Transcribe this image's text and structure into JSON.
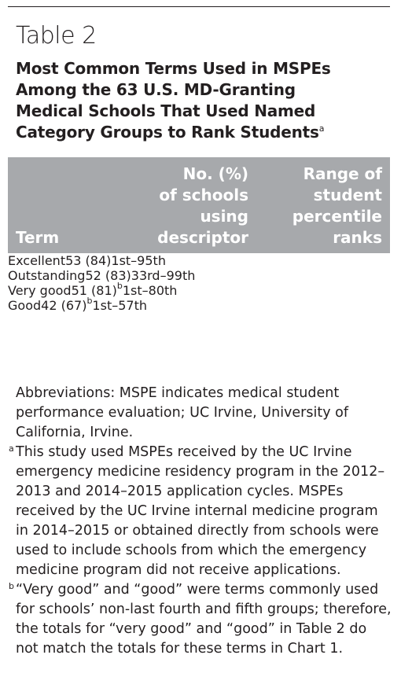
{
  "header": {
    "title": "Table 2",
    "subtitle_lines": [
      "Most Common Terms Used in MSPEs",
      "Among the 63 U.S. MD-Granting",
      "Medical Schools That Used Named",
      "Category Groups to Rank Students"
    ],
    "subtitle_note": "a"
  },
  "table": {
    "columns": [
      [
        "Term"
      ],
      [
        "No. (%)",
        "of schools",
        "using",
        "descriptor"
      ],
      [
        "Range of",
        "student",
        "percentile",
        "ranks"
      ]
    ],
    "rows": [
      [
        "Excellent",
        "53 (84)",
        "1st–95th"
      ],
      [
        "Outstanding",
        "52 (83)",
        "33rd–99th"
      ],
      [
        "Very good",
        {
          "text": "51 (81)",
          "note": "b"
        },
        "1st–80th"
      ],
      [
        "Good",
        {
          "text": "42 (67)",
          "note": "b"
        },
        "1st–57th"
      ]
    ]
  },
  "footnotes": [
    {
      "text": "Abbreviations: MSPE indicates medical student performance evaluation; UC Irvine, University of California, Irvine."
    },
    {
      "marker": "a",
      "text": "This study used MSPEs received by the UC Irvine emergency medicine residency program in the 2012–2013 and 2014–2015 application cycles. MSPEs received by the UC Irvine internal medicine program in 2014–2015 or obtained directly from schools were used to include schools from which the emergency medicine program did not receive applications."
    },
    {
      "marker": "b",
      "text": "“Very good” and “good” were terms commonly used for schools’ non-last fourth and fifth groups; therefore, the totals for “very good” and “good” in Table 2 do not match the totals for these terms in Chart 1."
    }
  ]
}
